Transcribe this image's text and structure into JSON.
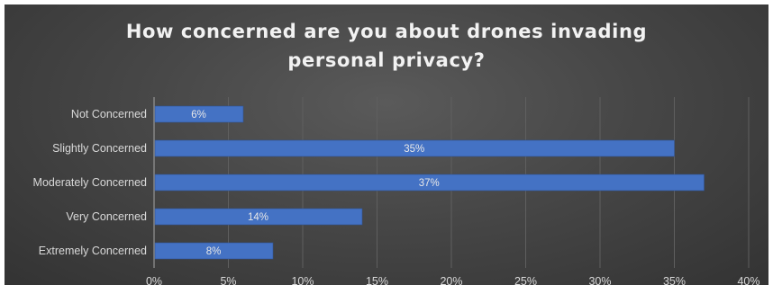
{
  "chart_data": {
    "type": "bar",
    "orientation": "horizontal",
    "title_lines": [
      "How concerned are you about drones invading",
      "personal privacy?"
    ],
    "categories": [
      "Not Concerned",
      "Slightly Concerned",
      "Moderately Concerned",
      "Very Concerned",
      "Extremely Concerned"
    ],
    "values": [
      6,
      35,
      37,
      14,
      8
    ],
    "value_labels": [
      "6%",
      "35%",
      "37%",
      "14%",
      "8%"
    ],
    "xlim": [
      0,
      40
    ],
    "ticks": [
      0,
      5,
      10,
      15,
      20,
      25,
      30,
      35,
      40
    ],
    "tick_labels": [
      "0%",
      "5%",
      "10%",
      "15%",
      "20%",
      "25%",
      "30%",
      "35%",
      "40%"
    ],
    "xlabel": "",
    "ylabel": "",
    "grid": true,
    "legend": "none",
    "bar_color": "#4472c4",
    "background": "dark gradient"
  }
}
